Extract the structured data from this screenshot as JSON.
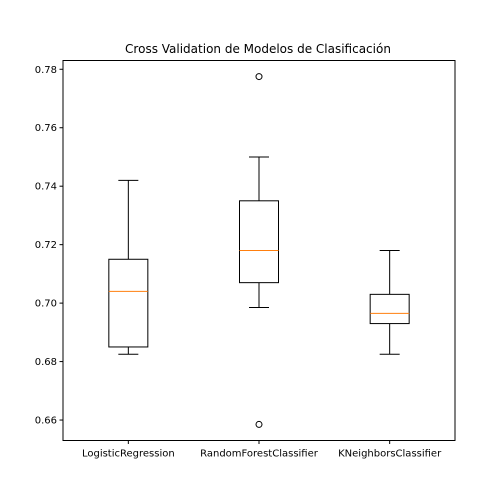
{
  "chart_data": {
    "type": "boxplot",
    "title": "Cross Validation de Modelos de Clasificación",
    "xlabel": "",
    "ylabel": "",
    "ylim": [
      0.653,
      0.783
    ],
    "y_ticks": [
      0.66,
      0.68,
      0.7,
      0.72,
      0.74,
      0.76,
      0.78
    ],
    "y_tick_labels": [
      "0.66",
      "0.68",
      "0.70",
      "0.72",
      "0.74",
      "0.76",
      "0.78"
    ],
    "grid": false,
    "box_color": "#000000",
    "median_color": "#ff7f0e",
    "categories": [
      "LogisticRegression",
      "RandomForestClassifier",
      "KNeighborsClassifier"
    ],
    "boxes": [
      {
        "name": "LogisticRegression",
        "whisker_low": 0.6825,
        "q1": 0.685,
        "median": 0.704,
        "q3": 0.715,
        "whisker_high": 0.742,
        "outliers": []
      },
      {
        "name": "RandomForestClassifier",
        "whisker_low": 0.6985,
        "q1": 0.707,
        "median": 0.718,
        "q3": 0.735,
        "whisker_high": 0.75,
        "outliers": [
          0.7775,
          0.6585
        ]
      },
      {
        "name": "KNeighborsClassifier",
        "whisker_low": 0.6825,
        "q1": 0.693,
        "median": 0.6965,
        "q3": 0.703,
        "whisker_high": 0.718,
        "outliers": []
      }
    ]
  }
}
